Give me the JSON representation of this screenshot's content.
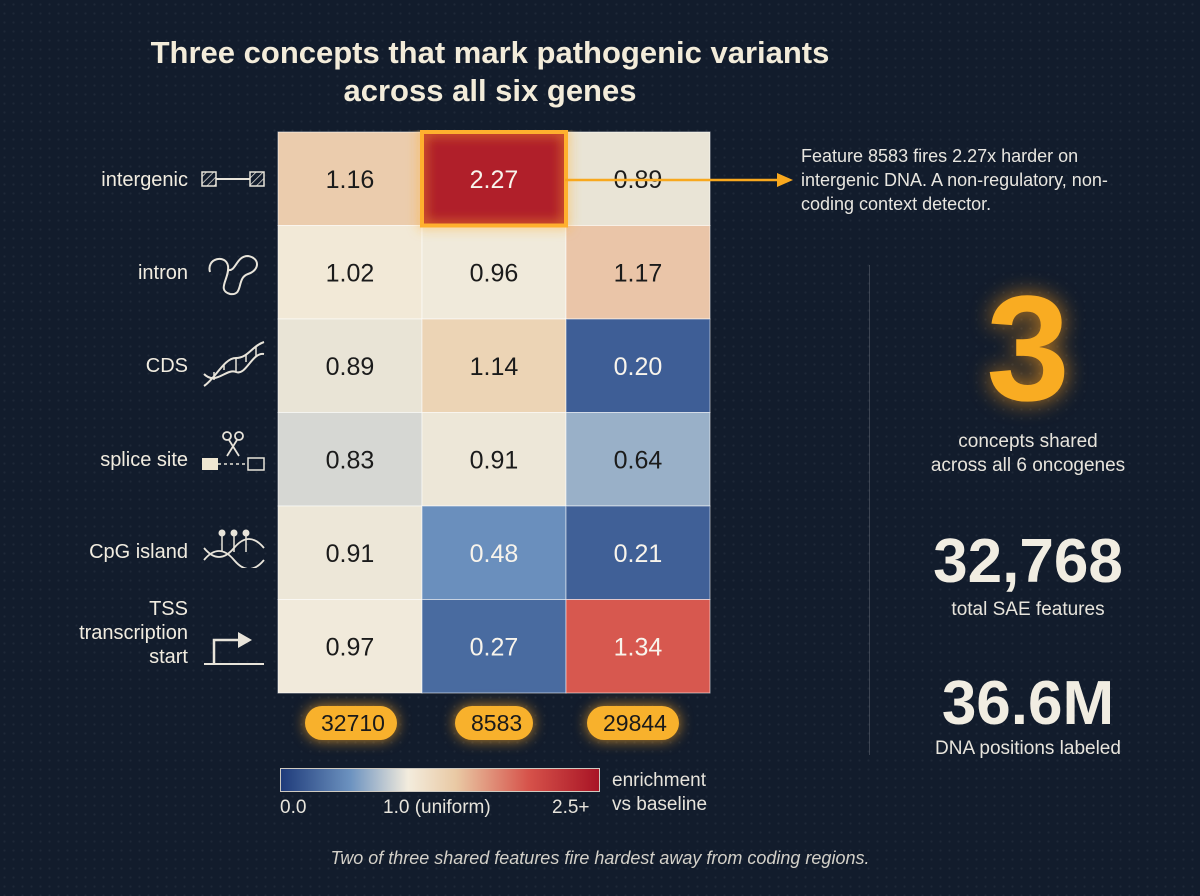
{
  "title": "Three concepts that mark pathogenic variants across all six genes",
  "rows": [
    {
      "label": "intergenic",
      "icon": "intergenic-icon"
    },
    {
      "label": "intron",
      "icon": "intron-loop-icon"
    },
    {
      "label": "CDS",
      "icon": "dna-helix-icon"
    },
    {
      "label": "splice site",
      "icon": "scissors-splice-icon"
    },
    {
      "label": "CpG island",
      "icon": "methylated-dna-icon"
    },
    {
      "label": "TSS\ntranscription\nstart",
      "icon": "tss-arrow-icon"
    }
  ],
  "features": [
    "32710",
    "8583",
    "29844"
  ],
  "chart_data": {
    "type": "heatmap",
    "title": "Three concepts that mark pathogenic variants across all six genes",
    "rows": [
      "intergenic",
      "intron",
      "CDS",
      "splice site",
      "CpG island",
      "TSS transcription start"
    ],
    "columns": [
      "32710",
      "8583",
      "29844"
    ],
    "values": [
      [
        1.16,
        2.27,
        0.89
      ],
      [
        1.02,
        0.96,
        1.17
      ],
      [
        0.89,
        1.14,
        0.2
      ],
      [
        0.83,
        0.91,
        0.64
      ],
      [
        0.91,
        0.48,
        0.21
      ],
      [
        0.97,
        0.27,
        1.34
      ]
    ],
    "highlight": {
      "row": 0,
      "col": 1
    },
    "color_scale": {
      "min": 0.0,
      "mid": 1.0,
      "max": 2.5,
      "min_color": "#1f3b7a",
      "mid_color": "#f3ecdd",
      "max_color": "#b3142a"
    },
    "legend": {
      "min_label": "0.0",
      "mid_label": "1.0 (uniform)",
      "max_label": "2.5+",
      "title": "enrichment\nvs baseline"
    }
  },
  "callout": "Feature 8583 fires 2.27x harder on intergenic DNA. A non-regulatory, non-coding context detector.",
  "stats": [
    {
      "value": "3",
      "label": "concepts shared\nacross all 6 oncogenes"
    },
    {
      "value": "32,768",
      "label": "total SAE features"
    },
    {
      "value": "36.6M",
      "label": "DNA positions labeled"
    }
  ],
  "footnote": "Two of three shared features fire hardest away from coding regions.",
  "colors": {
    "background": "#121c2c",
    "accent": "#f8a81e",
    "text": "#f3ede0"
  }
}
